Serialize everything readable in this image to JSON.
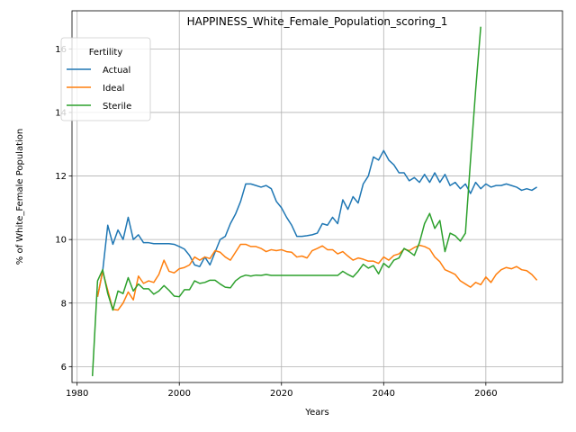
{
  "chart_data": {
    "type": "line",
    "title": "HAPPINESS_White_Female_Population_scoring_1",
    "xlabel": "Years",
    "ylabel": "% of White_Female Population",
    "xlim": [
      1979,
      2075
    ],
    "ylim": [
      5.5,
      17.2
    ],
    "xticks": [
      1980,
      2000,
      2020,
      2040,
      2060
    ],
    "yticks": [
      6,
      8,
      10,
      12,
      14,
      16
    ],
    "grid": true,
    "legend": {
      "title": "Fertility",
      "placement": "top-left"
    },
    "series": [
      {
        "name": "Actual",
        "color": "#1f77b4",
        "x": [
          1984,
          1985,
          1986,
          1987,
          1988,
          1989,
          1990,
          1991,
          1992,
          1993,
          1994,
          1995,
          1996,
          1997,
          1998,
          1999,
          2000,
          2001,
          2002,
          2003,
          2004,
          2005,
          2006,
          2007,
          2008,
          2009,
          2010,
          2011,
          2012,
          2013,
          2014,
          2015,
          2016,
          2017,
          2018,
          2019,
          2020,
          2021,
          2022,
          2023,
          2024,
          2025,
          2026,
          2027,
          2028,
          2029,
          2030,
          2031,
          2032,
          2033,
          2034,
          2035,
          2036,
          2037,
          2038,
          2039,
          2040,
          2041,
          2042,
          2043,
          2044,
          2045,
          2046,
          2047,
          2048,
          2049,
          2050,
          2051,
          2052,
          2053,
          2054,
          2055,
          2056,
          2057,
          2058,
          2059,
          2060,
          2061,
          2062,
          2063,
          2064,
          2065,
          2066,
          2067,
          2068,
          2069,
          2070
        ],
        "y": [
          8.2,
          9.0,
          10.45,
          9.85,
          10.3,
          10.0,
          10.7,
          10.0,
          10.15,
          9.9,
          9.9,
          9.87,
          9.87,
          9.87,
          9.87,
          9.85,
          9.78,
          9.7,
          9.5,
          9.2,
          9.15,
          9.45,
          9.2,
          9.6,
          10.0,
          10.1,
          10.5,
          10.8,
          11.2,
          11.75,
          11.75,
          11.7,
          11.65,
          11.7,
          11.6,
          11.2,
          11.0,
          10.7,
          10.45,
          10.1,
          10.1,
          10.12,
          10.15,
          10.2,
          10.5,
          10.45,
          10.7,
          10.5,
          11.25,
          10.95,
          11.35,
          11.15,
          11.75,
          12.0,
          12.6,
          12.5,
          12.8,
          12.5,
          12.35,
          12.1,
          12.1,
          11.85,
          11.95,
          11.8,
          12.05,
          11.8,
          12.1,
          11.8,
          12.05,
          11.7,
          11.8,
          11.6,
          11.75,
          11.45,
          11.8,
          11.6,
          11.75,
          11.65,
          11.7,
          11.7,
          11.75,
          11.7,
          11.65,
          11.55,
          11.6,
          11.55,
          11.65
        ]
      },
      {
        "name": "Ideal",
        "color": "#ff7f0e",
        "x": [
          1984,
          1985,
          1986,
          1987,
          1988,
          1989,
          1990,
          1991,
          1992,
          1993,
          1994,
          1995,
          1996,
          1997,
          1998,
          1999,
          2000,
          2001,
          2002,
          2003,
          2004,
          2005,
          2006,
          2007,
          2008,
          2009,
          2010,
          2011,
          2012,
          2013,
          2014,
          2015,
          2016,
          2017,
          2018,
          2019,
          2020,
          2021,
          2022,
          2023,
          2024,
          2025,
          2026,
          2027,
          2028,
          2029,
          2030,
          2031,
          2032,
          2033,
          2034,
          2035,
          2036,
          2037,
          2038,
          2039,
          2040,
          2041,
          2042,
          2043,
          2044,
          2045,
          2046,
          2047,
          2048,
          2049,
          2050,
          2051,
          2052,
          2053,
          2054,
          2055,
          2056,
          2057,
          2058,
          2059,
          2060,
          2061,
          2062,
          2063,
          2064,
          2065,
          2066,
          2067,
          2068,
          2069,
          2070
        ],
        "y": [
          8.2,
          9.0,
          8.4,
          7.8,
          7.78,
          8.0,
          8.35,
          8.1,
          8.85,
          8.62,
          8.7,
          8.65,
          8.9,
          9.35,
          9.0,
          8.95,
          9.08,
          9.12,
          9.2,
          9.45,
          9.35,
          9.45,
          9.4,
          9.65,
          9.6,
          9.45,
          9.35,
          9.6,
          9.85,
          9.85,
          9.78,
          9.78,
          9.72,
          9.62,
          9.68,
          9.65,
          9.68,
          9.62,
          9.6,
          9.45,
          9.48,
          9.42,
          9.65,
          9.72,
          9.8,
          9.68,
          9.68,
          9.55,
          9.62,
          9.48,
          9.35,
          9.42,
          9.38,
          9.32,
          9.32,
          9.25,
          9.45,
          9.35,
          9.5,
          9.55,
          9.7,
          9.65,
          9.75,
          9.82,
          9.78,
          9.7,
          9.45,
          9.3,
          9.05,
          8.98,
          8.9,
          8.7,
          8.6,
          8.5,
          8.65,
          8.58,
          8.82,
          8.65,
          8.9,
          9.05,
          9.12,
          9.08,
          9.15,
          9.05,
          9.02,
          8.9,
          8.72
        ]
      },
      {
        "name": "Sterile",
        "color": "#2ca02c",
        "x": [
          1983,
          1984,
          1985,
          1986,
          1987,
          1988,
          1989,
          1990,
          1991,
          1992,
          1993,
          1994,
          1995,
          1996,
          1997,
          1998,
          1999,
          2000,
          2001,
          2002,
          2003,
          2004,
          2005,
          2006,
          2007,
          2008,
          2009,
          2010,
          2011,
          2012,
          2013,
          2014,
          2015,
          2016,
          2017,
          2018,
          2019,
          2020,
          2021,
          2022,
          2023,
          2024,
          2025,
          2026,
          2027,
          2028,
          2029,
          2030,
          2031,
          2032,
          2033,
          2034,
          2035,
          2036,
          2037,
          2038,
          2039,
          2040,
          2041,
          2042,
          2043,
          2044,
          2045,
          2046,
          2047,
          2048,
          2049,
          2050,
          2051,
          2052,
          2053,
          2054,
          2055,
          2056,
          2057,
          2058,
          2059
        ],
        "y": [
          5.7,
          8.7,
          9.05,
          8.3,
          7.78,
          8.38,
          8.3,
          8.8,
          8.38,
          8.6,
          8.45,
          8.45,
          8.28,
          8.38,
          8.55,
          8.4,
          8.22,
          8.2,
          8.42,
          8.42,
          8.7,
          8.62,
          8.65,
          8.72,
          8.72,
          8.6,
          8.5,
          8.48,
          8.7,
          8.82,
          8.88,
          8.85,
          8.88,
          8.87,
          8.9,
          8.87,
          8.87,
          8.87,
          8.87,
          8.87,
          8.87,
          8.87,
          8.87,
          8.87,
          8.87,
          8.87,
          8.87,
          8.87,
          8.87,
          9.0,
          8.9,
          8.82,
          9.0,
          9.22,
          9.1,
          9.18,
          8.92,
          9.25,
          9.12,
          9.35,
          9.42,
          9.72,
          9.62,
          9.5,
          9.9,
          10.5,
          10.82,
          10.35,
          10.6,
          9.62,
          10.2,
          10.12,
          9.95,
          10.2,
          12.5,
          14.7,
          16.7
        ]
      }
    ]
  }
}
